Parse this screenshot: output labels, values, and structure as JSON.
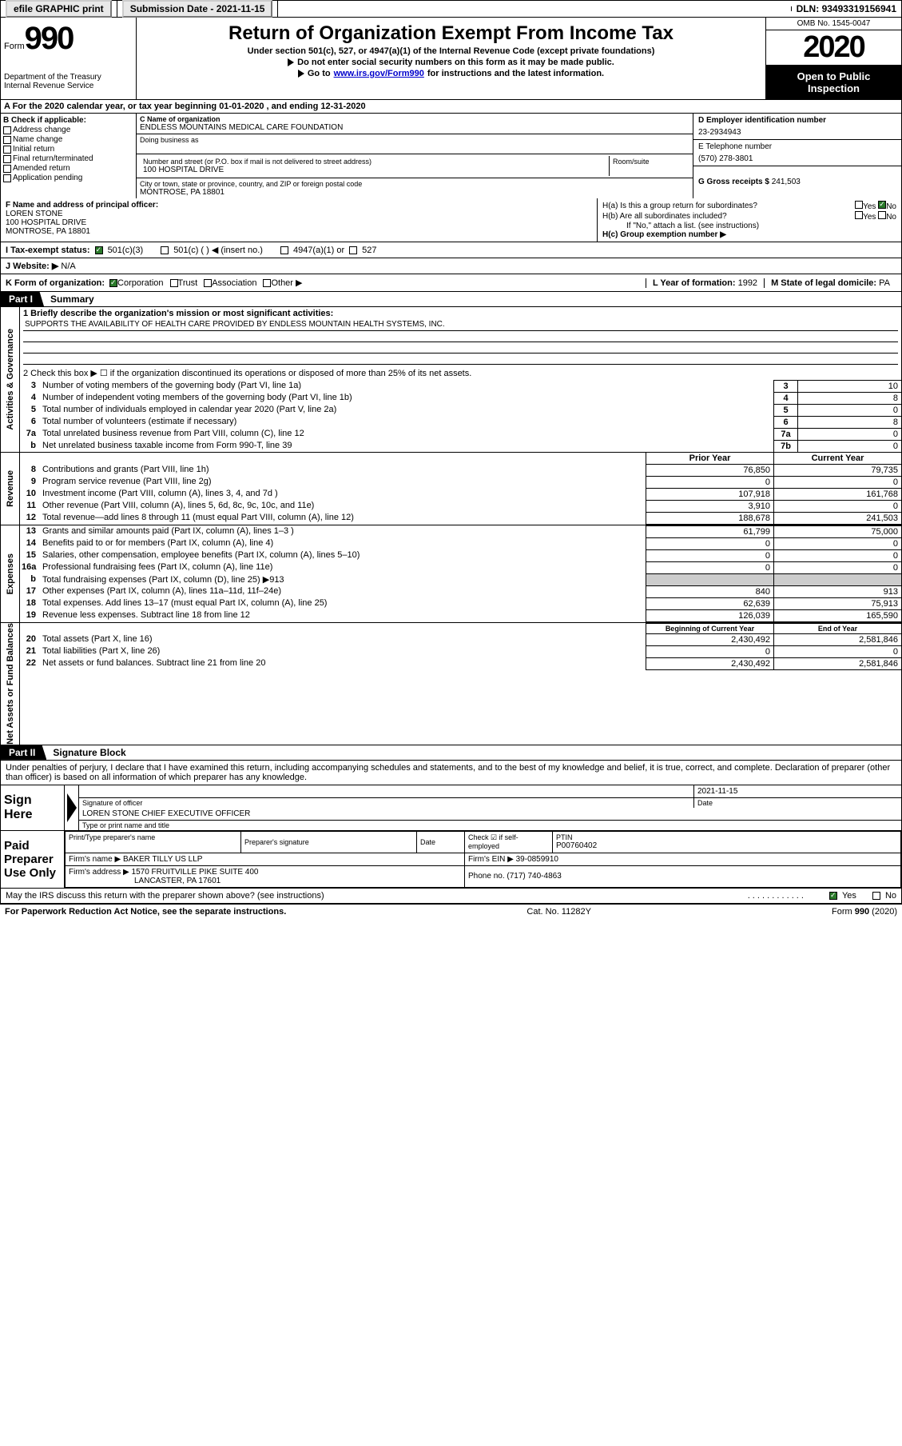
{
  "topbar": {
    "efile": "efile GRAPHIC print",
    "sub_label": "Submission Date - ",
    "sub_date": "2021-11-15",
    "dln_label": "DLN: ",
    "dln": "93493319156941"
  },
  "header": {
    "form_word": "Form",
    "form_num": "990",
    "dept1": "Department of the Treasury",
    "dept2": "Internal Revenue Service",
    "title": "Return of Organization Exempt From Income Tax",
    "subtitle": "Under section 501(c), 527, or 4947(a)(1) of the Internal Revenue Code (except private foundations)",
    "arrow1": "Do not enter social security numbers on this form as it may be made public.",
    "arrow2_pre": "Go to ",
    "arrow2_link": "www.irs.gov/Form990",
    "arrow2_post": " for instructions and the latest information.",
    "omb": "OMB No. 1545-0047",
    "year": "2020",
    "inspection1": "Open to Public",
    "inspection2": "Inspection"
  },
  "row_a": "A For the 2020 calendar year, or tax year beginning 01-01-2020   , and ending 12-31-2020",
  "col_b": {
    "hdr": "B Check if applicable:",
    "items": [
      "Address change",
      "Name change",
      "Initial return",
      "Final return/terminated",
      "Amended return",
      "Application pending"
    ]
  },
  "col_c": {
    "name_lbl": "C Name of organization",
    "name": "ENDLESS MOUNTAINS MEDICAL CARE FOUNDATION",
    "dba_lbl": "Doing business as",
    "addr_lbl": "Number and street (or P.O. box if mail is not delivered to street address)",
    "room_lbl": "Room/suite",
    "addr": "100 HOSPITAL DRIVE",
    "city_lbl": "City or town, state or province, country, and ZIP or foreign postal code",
    "city": "MONTROSE, PA   18801"
  },
  "col_d": {
    "ein_lbl": "D Employer identification number",
    "ein": "23-2934943",
    "tel_lbl": "E Telephone number",
    "tel": "(570) 278-3801",
    "gross_lbl": "G Gross receipts $ ",
    "gross": "241,503"
  },
  "row_f": {
    "lbl": "F Name and address of principal officer:",
    "name": "LOREN STONE",
    "addr1": "100 HOSPITAL DRIVE",
    "addr2": "MONTROSE, PA   18801"
  },
  "row_h": {
    "ha": "H(a)  Is this a group return for subordinates?",
    "hb": "H(b)  Are all subordinates included?",
    "hb_note": "If \"No,\" attach a list. (see instructions)",
    "hc": "H(c)  Group exemption number ▶",
    "yes": "Yes",
    "no": "No"
  },
  "row_i": {
    "lbl": "I   Tax-exempt status:",
    "opt1": "501(c)(3)",
    "opt2": "501(c) (   ) ◀ (insert no.)",
    "opt3": "4947(a)(1) or",
    "opt4": "527"
  },
  "row_j": {
    "lbl": "J   Website: ▶",
    "val": "N/A"
  },
  "row_k": {
    "lbl": "K Form of organization:",
    "opts": [
      "Corporation",
      "Trust",
      "Association",
      "Other ▶"
    ],
    "l_lbl": "L Year of formation: ",
    "l_val": "1992",
    "m_lbl": "M State of legal domicile: ",
    "m_val": "PA"
  },
  "parts": {
    "p1": "Part I",
    "p1_title": "Summary",
    "p2": "Part II",
    "p2_title": "Signature Block"
  },
  "vlabels": {
    "ag": "Activities & Governance",
    "rev": "Revenue",
    "exp": "Expenses",
    "net": "Net Assets or Fund Balances"
  },
  "summary": {
    "l1_lbl": "1  Briefly describe the organization's mission or most significant activities:",
    "l1_val": "SUPPORTS THE AVAILABILITY OF HEALTH CARE PROVIDED BY ENDLESS MOUNTAIN HEALTH SYSTEMS, INC.",
    "l2": "2   Check this box ▶ ☐  if the organization discontinued its operations or disposed of more than 25% of its net assets.",
    "lines_single": [
      {
        "n": "3",
        "d": "Number of voting members of the governing body (Part VI, line 1a)",
        "box": "3",
        "v": "10"
      },
      {
        "n": "4",
        "d": "Number of independent voting members of the governing body (Part VI, line 1b)",
        "box": "4",
        "v": "8"
      },
      {
        "n": "5",
        "d": "Total number of individuals employed in calendar year 2020 (Part V, line 2a)",
        "box": "5",
        "v": "0"
      },
      {
        "n": "6",
        "d": "Total number of volunteers (estimate if necessary)",
        "box": "6",
        "v": "8"
      },
      {
        "n": "7a",
        "d": "Total unrelated business revenue from Part VIII, column (C), line 12",
        "box": "7a",
        "v": "0"
      },
      {
        "n": "b",
        "d": "Net unrelated business taxable income from Form 990-T, line 39",
        "box": "7b",
        "v": "0"
      }
    ],
    "hdr_prior": "Prior Year",
    "hdr_current": "Current Year",
    "rev_lines": [
      {
        "n": "8",
        "d": "Contributions and grants (Part VIII, line 1h)",
        "v1": "76,850",
        "v2": "79,735"
      },
      {
        "n": "9",
        "d": "Program service revenue (Part VIII, line 2g)",
        "v1": "0",
        "v2": "0"
      },
      {
        "n": "10",
        "d": "Investment income (Part VIII, column (A), lines 3, 4, and 7d )",
        "v1": "107,918",
        "v2": "161,768"
      },
      {
        "n": "11",
        "d": "Other revenue (Part VIII, column (A), lines 5, 6d, 8c, 9c, 10c, and 11e)",
        "v1": "3,910",
        "v2": "0"
      },
      {
        "n": "12",
        "d": "Total revenue—add lines 8 through 11 (must equal Part VIII, column (A), line 12)",
        "v1": "188,678",
        "v2": "241,503"
      }
    ],
    "exp_lines": [
      {
        "n": "13",
        "d": "Grants and similar amounts paid (Part IX, column (A), lines 1–3 )",
        "v1": "61,799",
        "v2": "75,000"
      },
      {
        "n": "14",
        "d": "Benefits paid to or for members (Part IX, column (A), line 4)",
        "v1": "0",
        "v2": "0"
      },
      {
        "n": "15",
        "d": "Salaries, other compensation, employee benefits (Part IX, column (A), lines 5–10)",
        "v1": "0",
        "v2": "0"
      },
      {
        "n": "16a",
        "d": "Professional fundraising fees (Part IX, column (A), line 11e)",
        "v1": "0",
        "v2": "0"
      },
      {
        "n": "b",
        "d": "Total fundraising expenses (Part IX, column (D), line 25) ▶913",
        "v1": "",
        "v2": "",
        "grey": true
      },
      {
        "n": "17",
        "d": "Other expenses (Part IX, column (A), lines 11a–11d, 11f–24e)",
        "v1": "840",
        "v2": "913"
      },
      {
        "n": "18",
        "d": "Total expenses. Add lines 13–17 (must equal Part IX, column (A), line 25)",
        "v1": "62,639",
        "v2": "75,913"
      },
      {
        "n": "19",
        "d": "Revenue less expenses. Subtract line 18 from line 12",
        "v1": "126,039",
        "v2": "165,590"
      }
    ],
    "hdr_begin": "Beginning of Current Year",
    "hdr_end": "End of Year",
    "net_lines": [
      {
        "n": "20",
        "d": "Total assets (Part X, line 16)",
        "v1": "2,430,492",
        "v2": "2,581,846"
      },
      {
        "n": "21",
        "d": "Total liabilities (Part X, line 26)",
        "v1": "0",
        "v2": "0"
      },
      {
        "n": "22",
        "d": "Net assets or fund balances. Subtract line 21 from line 20",
        "v1": "2,430,492",
        "v2": "2,581,846"
      }
    ]
  },
  "sig": {
    "perjury": "Under penalties of perjury, I declare that I have examined this return, including accompanying schedules and statements, and to the best of my knowledge and belief, it is true, correct, and complete. Declaration of preparer (other than officer) is based on all information of which preparer has any knowledge.",
    "sign_here": "Sign Here",
    "sig_officer_lbl": "Signature of officer",
    "date_lbl": "Date",
    "date_val": "2021-11-15",
    "name_title": "LOREN STONE  CHIEF EXECUTIVE OFFICER",
    "name_lbl": "Type or print name and title",
    "paid": "Paid Preparer Use Only",
    "prep_name_lbl": "Print/Type preparer's name",
    "prep_sig_lbl": "Preparer's signature",
    "prep_date_lbl": "Date",
    "check_lbl": "Check ☑ if self-employed",
    "ptin_lbl": "PTIN",
    "ptin": "P00760402",
    "firm_name_lbl": "Firm's name    ▶ ",
    "firm_name": "BAKER TILLY US LLP",
    "firm_ein_lbl": "Firm's EIN ▶ ",
    "firm_ein": "39-0859910",
    "firm_addr_lbl": "Firm's address ▶ ",
    "firm_addr1": "1570 FRUITVILLE PIKE SUITE 400",
    "firm_addr2": "LANCASTER, PA   17601",
    "phone_lbl": "Phone no. ",
    "phone": "(717) 740-4863",
    "discuss": "May the IRS discuss this return with the preparer shown above? (see instructions)"
  },
  "footer": {
    "left": "For Paperwork Reduction Act Notice, see the separate instructions.",
    "mid": "Cat. No. 11282Y",
    "right": "Form 990 (2020)"
  },
  "colors": {
    "link": "#0000cc",
    "check_green": "#2a7a2a",
    "black": "#000000",
    "grey_cell": "#cccccc"
  }
}
